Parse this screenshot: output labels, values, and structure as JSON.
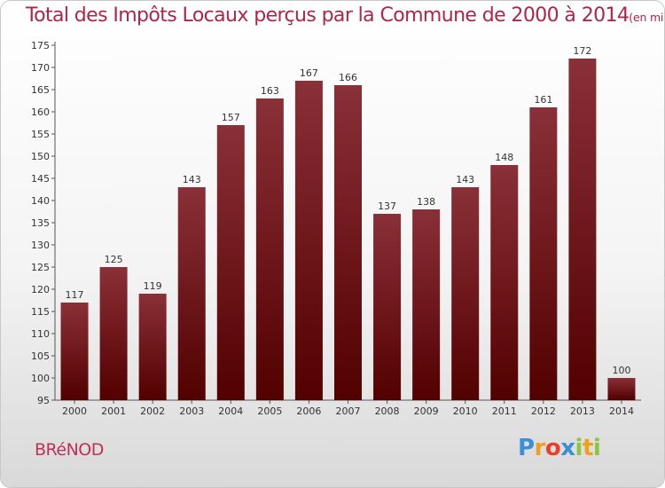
{
  "title": "Total des Impôts Locaux perçus par la Commune de 2000 à 2014",
  "unit": "(en milliers d'€)",
  "commune": "BRéNOD",
  "logo": {
    "letters": [
      "P",
      "r",
      "o",
      "x",
      "i",
      "t",
      "i"
    ]
  },
  "chart_data": {
    "type": "bar",
    "title": "Total des Impôts Locaux perçus par la Commune de 2000 à 2014",
    "ylabel": "(en milliers d'€)",
    "categories": [
      "2000",
      "2001",
      "2002",
      "2003",
      "2004",
      "2005",
      "2006",
      "2007",
      "2008",
      "2009",
      "2010",
      "2011",
      "2012",
      "2013",
      "2014"
    ],
    "values": [
      117,
      125,
      119,
      143,
      157,
      163,
      167,
      166,
      137,
      138,
      143,
      148,
      161,
      172,
      100
    ],
    "ylim": [
      95,
      175
    ],
    "yticks": [
      95,
      100,
      105,
      110,
      115,
      120,
      125,
      130,
      135,
      140,
      145,
      150,
      155,
      160,
      165,
      170,
      175
    ],
    "grid": false,
    "bar_color": "#7a1f2b"
  }
}
